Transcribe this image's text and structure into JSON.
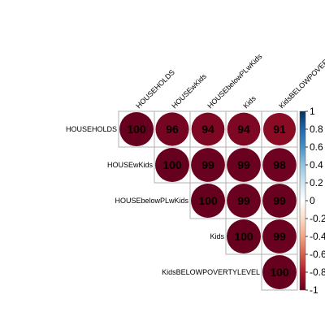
{
  "chart_data": {
    "type": "heatmap",
    "subtype": "upper-triangle correlation plot (circles)",
    "variables": [
      "HOUSEHOLDS",
      "HOUSEwKids",
      "HOUSEbelowPLwKids",
      "Kids",
      "KidsBELOWPOVERTYLEVEL"
    ],
    "matrix": [
      [
        100,
        96,
        94,
        94,
        91
      ],
      [
        null,
        100,
        99,
        99,
        98
      ],
      [
        null,
        null,
        100,
        99,
        99
      ],
      [
        null,
        null,
        null,
        100,
        99
      ],
      [
        null,
        null,
        null,
        null,
        100
      ]
    ],
    "value_scale": "correlation x 100",
    "colorbar": {
      "range": [
        -1,
        1
      ],
      "ticks": [
        "1",
        "0.8",
        "0.6",
        "0.4",
        "0.2",
        "0",
        "-0.2",
        "-0.4",
        "-0.6",
        "-0.8",
        "-1"
      ],
      "colors": [
        "#67001f",
        "#b2182b",
        "#d6604d",
        "#f4a582",
        "#fddbc7",
        "#ffffff",
        "#d1e5f0",
        "#92c5de",
        "#4393c3",
        "#2166ac",
        "#053061"
      ]
    },
    "grid": true,
    "legend_position": "right"
  }
}
